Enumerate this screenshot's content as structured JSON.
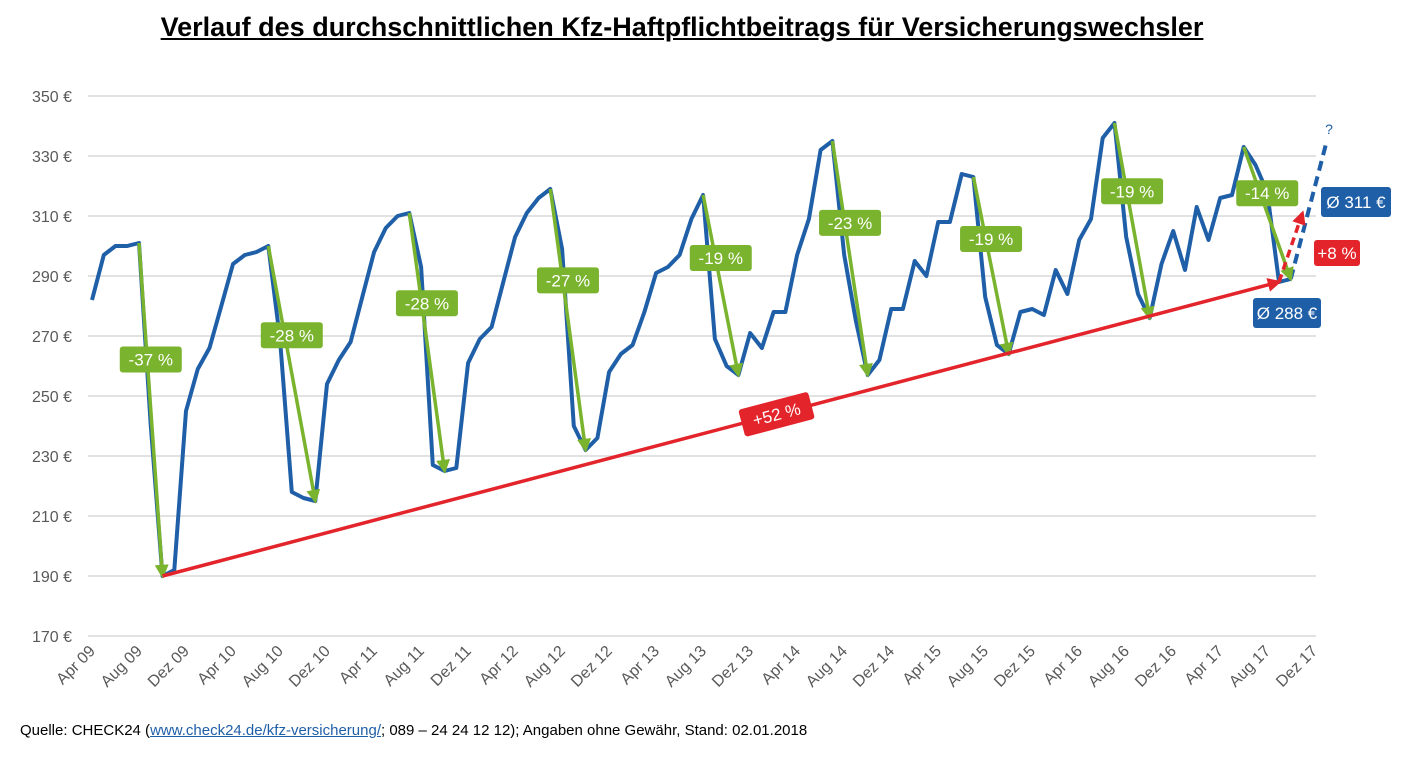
{
  "chart_data": {
    "type": "line",
    "title": "Verlauf des durchschnittlichen Kfz-Haftpflichtbeitrags für Versicherungswechsler",
    "xlabel": "",
    "ylabel": "",
    "ylim": [
      170,
      350
    ],
    "y_ticks": [
      170,
      190,
      210,
      230,
      250,
      270,
      290,
      310,
      330,
      350
    ],
    "y_tick_labels": [
      "170 €",
      "190 €",
      "210 €",
      "230 €",
      "250 €",
      "270 €",
      "290 €",
      "310 €",
      "330 €",
      "350 €"
    ],
    "x_tick_labels": [
      "Apr 09",
      "Aug 09",
      "Dez 09",
      "Apr 10",
      "Aug 10",
      "Dez 10",
      "Apr 11",
      "Aug 11",
      "Dez 11",
      "Apr 12",
      "Aug 12",
      "Dez 12",
      "Apr 13",
      "Aug 13",
      "Dez 13",
      "Apr 14",
      "Aug 14",
      "Dez 14",
      "Apr 15",
      "Aug 15",
      "Dez 15",
      "Apr 16",
      "Aug 16",
      "Dez 16",
      "Apr 17",
      "Aug 17",
      "Dez 17"
    ],
    "x_start": "Apr 09",
    "series": [
      {
        "name": "Durchschnittlicher Kfz-Haftpflichtbeitrag",
        "color": "#1f5fa8",
        "values": [
          282,
          297,
          300,
          300,
          301,
          240,
          190,
          192,
          245,
          259,
          266,
          280,
          294,
          297,
          298,
          300,
          269,
          218,
          216,
          215,
          254,
          262,
          268,
          283,
          298,
          306,
          310,
          311,
          293,
          227,
          225,
          226,
          261,
          269,
          273,
          288,
          303,
          311,
          316,
          319,
          299,
          240,
          232,
          236,
          258,
          264,
          267,
          278,
          291,
          293,
          297,
          309,
          317,
          269,
          260,
          257,
          271,
          266,
          278,
          278,
          297,
          309,
          332,
          335,
          297,
          275,
          257,
          262,
          279,
          279,
          295,
          290,
          308,
          308,
          324,
          323,
          283,
          267,
          264,
          278,
          279,
          277,
          292,
          284,
          302,
          309,
          336,
          341,
          303,
          284,
          276,
          294,
          305,
          292,
          313,
          302,
          316,
          317,
          333,
          327,
          318,
          288,
          289
        ]
      }
    ],
    "projection": {
      "from_index": 102,
      "to_index": 105,
      "to_value": 334,
      "label": "?"
    },
    "drop_annotations": [
      {
        "from_index": 4,
        "to_index": 6,
        "label": "-37 %"
      },
      {
        "from_index": 15,
        "to_index": 19,
        "label": "-28 %"
      },
      {
        "from_index": 27,
        "to_index": 30,
        "label": "-28 %"
      },
      {
        "from_index": 39,
        "to_index": 42,
        "label": "-27 %"
      },
      {
        "from_index": 52,
        "to_index": 55,
        "label": "-19 %"
      },
      {
        "from_index": 63,
        "to_index": 66,
        "label": "-23 %"
      },
      {
        "from_index": 75,
        "to_index": 78,
        "label": "-19 %"
      },
      {
        "from_index": 87,
        "to_index": 90,
        "label": "-19 %"
      },
      {
        "from_index": 98,
        "to_index": 102,
        "label": "-14 %"
      }
    ],
    "trend_annotation": {
      "from_index": 6,
      "from_value": 190,
      "to_index": 101,
      "to_value": 288,
      "label": "+52 %"
    },
    "forecast_annotation": {
      "from_index": 101,
      "from_value": 288,
      "to_index": 103,
      "to_value": 311,
      "label": "+8 %"
    },
    "value_callouts": [
      {
        "label": "Ø 288 €",
        "value": 288
      },
      {
        "label": "Ø 311 €",
        "value": 311
      }
    ],
    "colors": {
      "line": "#1f5fa8",
      "drop": "#7ab32e",
      "trend": "#e3242b",
      "grid": "#d9d9d9",
      "callout": "#1f5fa8"
    }
  },
  "source": {
    "prefix": "Quelle: CHECK24 (",
    "link": "www.check24.de/kfz-versicherung/",
    "suffix": "; 089 – 24 24 12 12); Angaben ohne Gewähr, Stand: 02.01.2018"
  }
}
